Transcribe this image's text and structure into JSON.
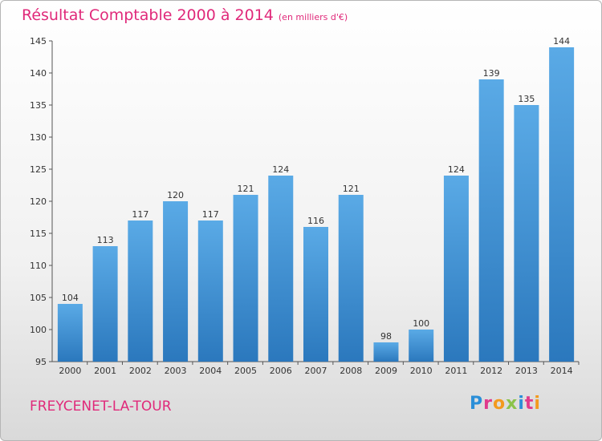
{
  "header": {
    "title": "Résultat Comptable 2000 à 2014",
    "subtitle": "(en milliers d'€)"
  },
  "footer": {
    "commune": "FREYCENET-LA-TOUR",
    "brand_letters": [
      "P",
      "r",
      "o",
      "x",
      "i",
      "t",
      "i"
    ]
  },
  "colors": {
    "bar_top": "#5aaae6",
    "bar_bottom": "#2b78bd",
    "title": "#e0297a"
  },
  "chart_data": {
    "type": "bar",
    "title": "Résultat Comptable 2000 à 2014",
    "subtitle": "(en milliers d'€)",
    "categories": [
      "2000",
      "2001",
      "2002",
      "2003",
      "2004",
      "2005",
      "2006",
      "2007",
      "2008",
      "2009",
      "2010",
      "2011",
      "2012",
      "2013",
      "2014"
    ],
    "values": [
      104,
      113,
      117,
      120,
      117,
      121,
      124,
      116,
      121,
      98,
      100,
      124,
      139,
      135,
      144
    ],
    "ylim": [
      95,
      145
    ],
    "yticks": [
      95,
      100,
      105,
      110,
      115,
      120,
      125,
      130,
      135,
      140,
      145
    ],
    "grid": false,
    "legend": "none"
  }
}
